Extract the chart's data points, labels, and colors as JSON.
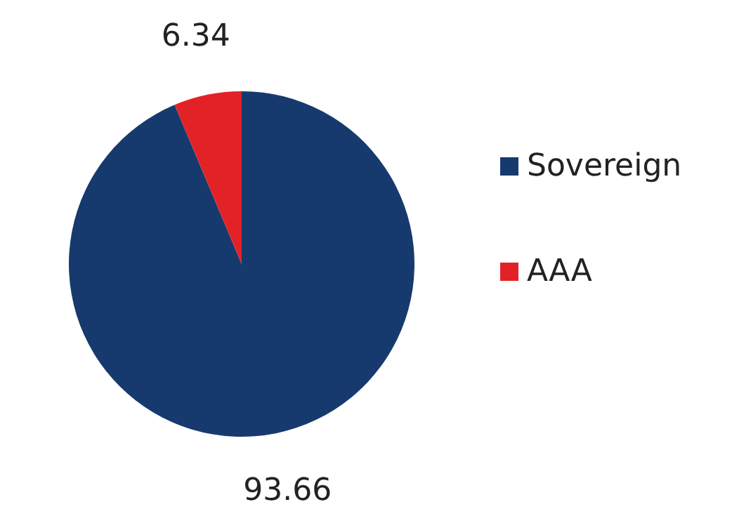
{
  "chart_data": {
    "type": "pie",
    "categories": [
      "Sovereign",
      "AAA"
    ],
    "values": [
      93.66,
      6.34
    ],
    "colors": [
      "#163a6e",
      "#e32227"
    ],
    "data_labels": true,
    "legend": "right"
  }
}
